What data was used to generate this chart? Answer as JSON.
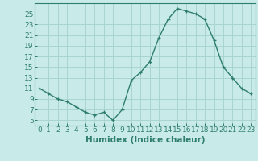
{
  "x": [
    0,
    1,
    2,
    3,
    4,
    5,
    6,
    7,
    8,
    9,
    10,
    11,
    12,
    13,
    14,
    15,
    16,
    17,
    18,
    19,
    20,
    21,
    22,
    23
  ],
  "y": [
    11,
    10,
    9,
    8.5,
    7.5,
    6.5,
    6,
    6.5,
    5,
    7,
    12.5,
    14,
    16,
    20.5,
    24,
    26,
    25.5,
    25,
    24,
    20,
    15,
    13,
    11,
    10
  ],
  "line_color": "#2e7d6e",
  "marker": "+",
  "bg_color": "#c8eae8",
  "grid_color": "#aad4d0",
  "xlabel": "Humidex (Indice chaleur)",
  "xlim": [
    -0.5,
    23.5
  ],
  "ylim": [
    4,
    27
  ],
  "yticks": [
    5,
    7,
    9,
    11,
    13,
    15,
    17,
    19,
    21,
    23,
    25
  ],
  "xticks": [
    0,
    1,
    2,
    3,
    4,
    5,
    6,
    7,
    8,
    9,
    10,
    11,
    12,
    13,
    14,
    15,
    16,
    17,
    18,
    19,
    20,
    21,
    22,
    23
  ],
  "tick_fontsize": 6.5,
  "xlabel_fontsize": 7.5,
  "line_width": 1.0,
  "marker_size": 3.5
}
